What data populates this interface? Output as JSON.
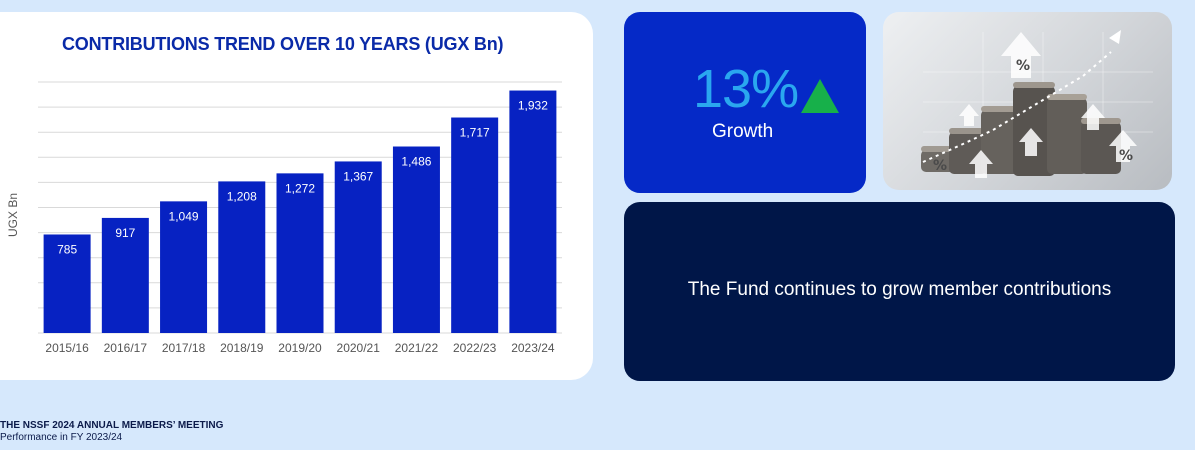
{
  "chart_data": {
    "type": "bar",
    "title": "CONTRIBUTIONS TREND OVER 10 YEARS (UGX Bn)",
    "ylabel": "UGX Bn",
    "xlabel": "",
    "categories": [
      "2015/16",
      "2016/17",
      "2017/18",
      "2018/19",
      "2019/20",
      "2020/21",
      "2021/22",
      "2022/23",
      "2023/24"
    ],
    "values": [
      785,
      917,
      1049,
      1208,
      1272,
      1367,
      1486,
      1717,
      1932
    ],
    "value_labels": [
      "785",
      "917",
      "1,049",
      "1,208",
      "1,272",
      "1,367",
      "1,486",
      "1,717",
      "1,932"
    ],
    "ylim": [
      0,
      2000
    ],
    "grid": true,
    "bar_color": "#0722c2",
    "label_color": "#ffffff"
  },
  "growth": {
    "value": "13%",
    "label": "Growth",
    "arrow": "up-triangle-icon",
    "arrow_color": "#17b04a"
  },
  "photo": {
    "icon": "coins-growth-image"
  },
  "message": {
    "text": "The Fund continues to grow member contributions"
  },
  "footer": {
    "title": "THE NSSF 2024 ANNUAL MEMBERS’ MEETING",
    "subtitle": "Performance in FY 2023/24"
  }
}
